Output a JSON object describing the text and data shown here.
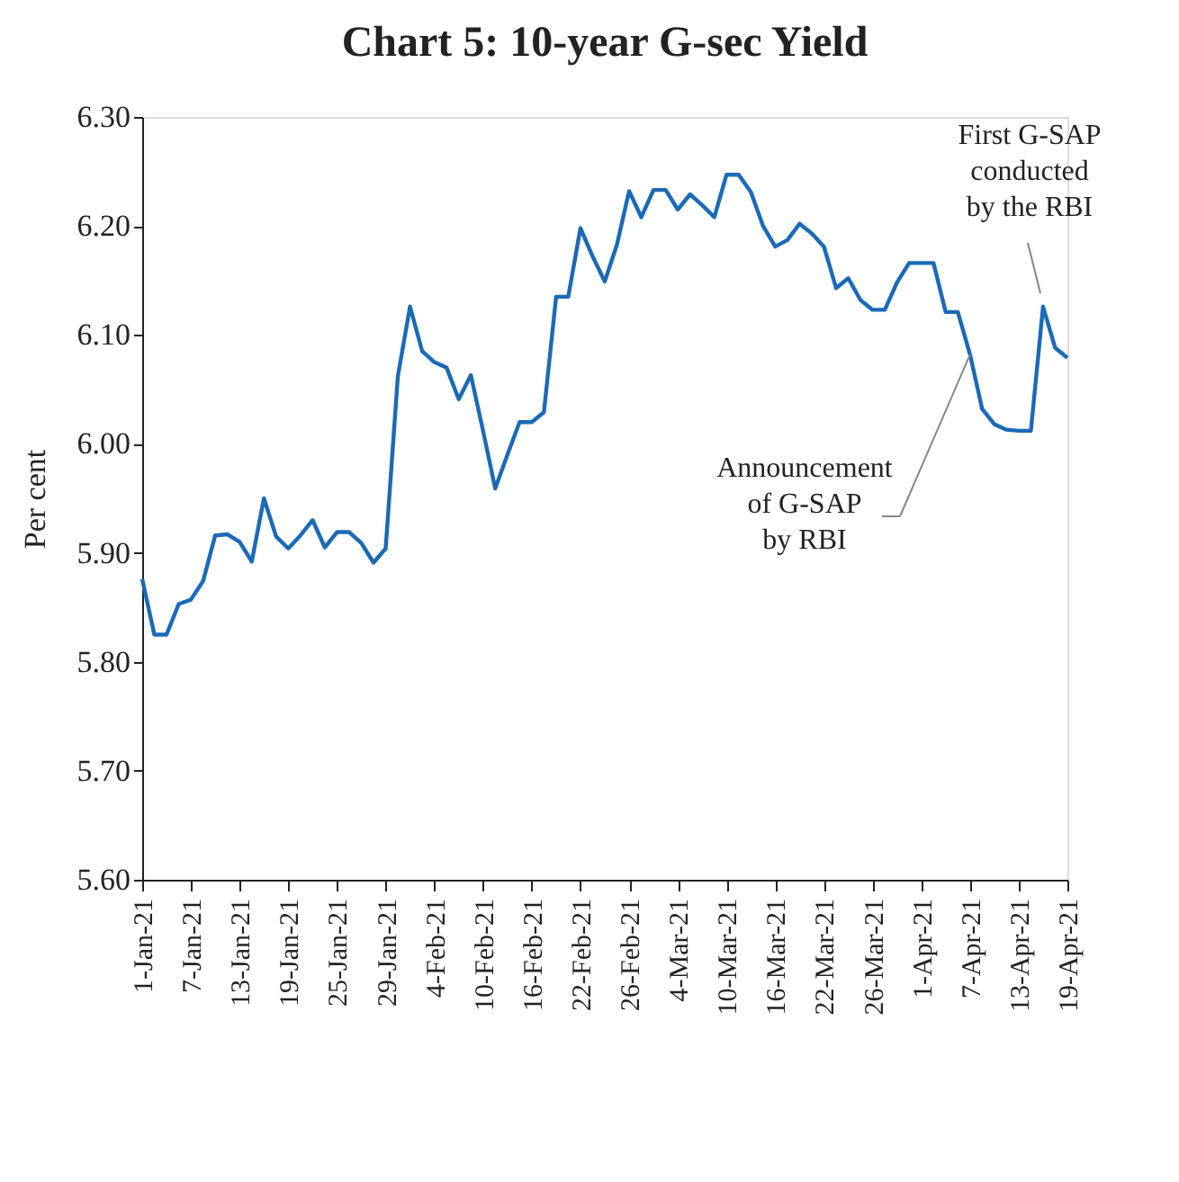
{
  "chart_data": {
    "type": "line",
    "title": "Chart 5: 10-year G-sec Yield",
    "ylabel": "Per cent",
    "categories": [
      "1-Jan-21",
      null,
      null,
      null,
      "7-Jan-21",
      null,
      null,
      null,
      "13-Jan-21",
      null,
      null,
      null,
      "19-Jan-21",
      null,
      null,
      null,
      "25-Jan-21",
      null,
      null,
      null,
      "29-Jan-21",
      null,
      null,
      null,
      "4-Feb-21",
      null,
      null,
      null,
      "10-Feb-21",
      null,
      null,
      null,
      "16-Feb-21",
      null,
      null,
      null,
      "22-Feb-21",
      null,
      null,
      null,
      "26-Feb-21",
      null,
      null,
      null,
      "4-Mar-21",
      null,
      null,
      null,
      "10-Mar-21",
      null,
      null,
      null,
      "16-Mar-21",
      null,
      null,
      null,
      "22-Mar-21",
      null,
      null,
      null,
      "26-Mar-21",
      null,
      null,
      null,
      "1-Apr-21",
      null,
      null,
      null,
      "7-Apr-21",
      null,
      null,
      null,
      "13-Apr-21",
      null,
      null,
      null,
      "19-Apr-21"
    ],
    "series": [
      {
        "color": "#1b6ab8",
        "values": [
          5.876,
          5.825,
          5.825,
          5.853,
          5.857,
          5.874,
          5.916,
          5.917,
          5.91,
          5.892,
          5.95,
          5.915,
          5.904,
          5.916,
          5.93,
          5.905,
          5.919,
          5.919,
          5.909,
          5.891,
          5.904,
          6.062,
          6.126,
          6.085,
          6.075,
          6.07,
          6.041,
          6.063,
          6.012,
          5.959,
          5.99,
          6.02,
          6.02,
          6.029,
          6.135,
          6.135,
          6.198,
          6.172,
          6.149,
          6.183,
          6.232,
          6.208,
          6.233,
          6.233,
          6.215,
          6.229,
          6.219,
          6.208,
          6.247,
          6.247,
          6.231,
          6.2,
          6.181,
          6.187,
          6.202,
          6.193,
          6.181,
          6.143,
          6.152,
          6.132,
          6.123,
          6.123,
          6.148,
          6.166,
          6.166,
          6.166,
          6.121,
          6.121,
          6.082,
          6.032,
          6.018,
          6.013,
          6.012,
          6.012,
          6.126,
          6.088,
          6.079
        ]
      }
    ],
    "ylim": [
      5.6,
      6.3
    ],
    "yticks": [
      {
        "value": 5.6,
        "label": "5.60"
      },
      {
        "value": 5.7,
        "label": "5.70"
      },
      {
        "value": 5.8,
        "label": "5.80"
      },
      {
        "value": 5.9,
        "label": "5.90"
      },
      {
        "value": 6.0,
        "label": "6.00"
      },
      {
        "value": 6.1,
        "label": "6.10"
      },
      {
        "value": 6.2,
        "label": "6.20"
      },
      {
        "value": 6.3,
        "label": "6.30"
      }
    ],
    "annotations": [
      "First G-SAP conducted by the RBI",
      {
        "text": "Announcement of G-SAP by RBI",
        "x": "7-Apr-21",
        "y": 6.082
      }
    ],
    "grid": false,
    "marker": "none",
    "line_style": "solid"
  }
}
